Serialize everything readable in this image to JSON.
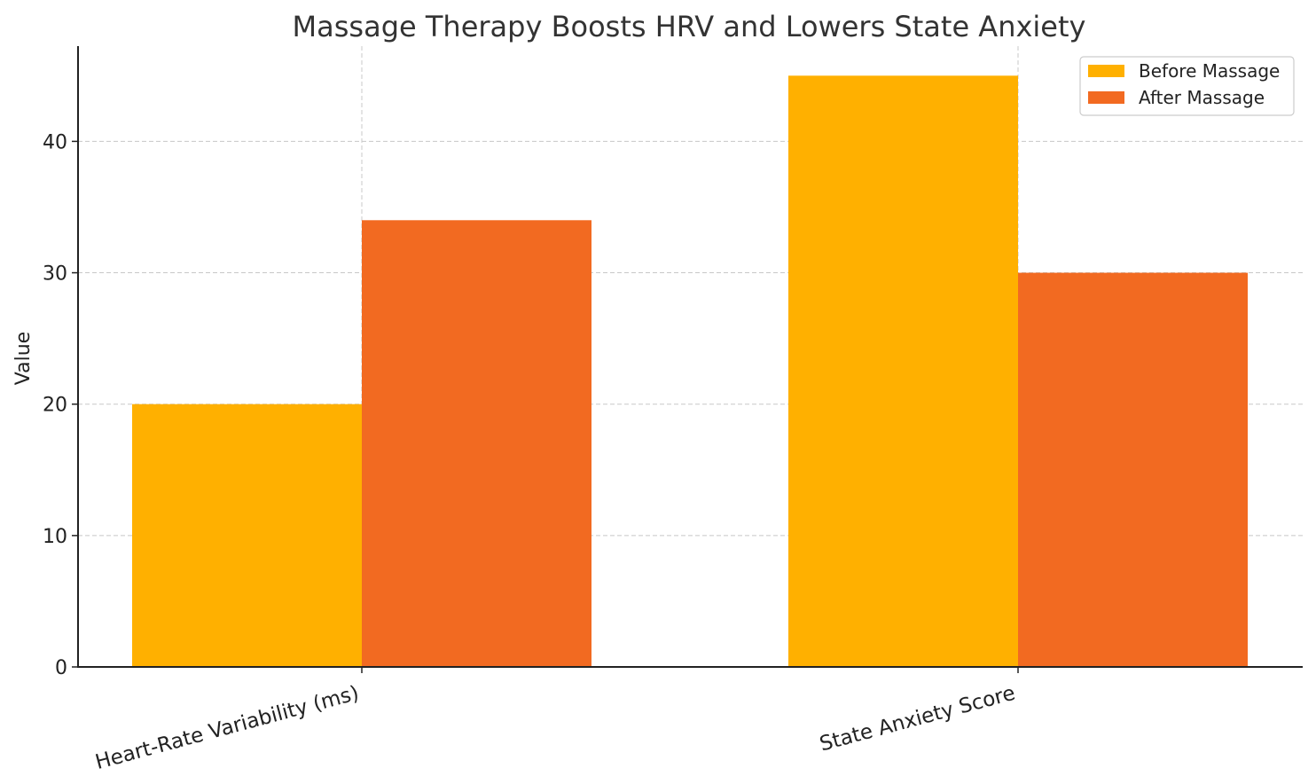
{
  "chart_data": {
    "type": "bar",
    "title": "Massage Therapy Boosts HRV and Lowers State Anxiety",
    "xlabel": "",
    "ylabel": "Value",
    "categories": [
      "Heart-Rate Variability (ms)",
      "State Anxiety Score"
    ],
    "series": [
      {
        "name": "Before Massage",
        "values": [
          20,
          45
        ],
        "color": "#FFB000"
      },
      {
        "name": "After Massage",
        "values": [
          34,
          30
        ],
        "color": "#F26A21"
      }
    ],
    "ylim": [
      0,
      47.25
    ],
    "yticks": [
      0,
      10,
      20,
      30,
      40
    ],
    "grid": true,
    "legend_position": "top-right"
  }
}
